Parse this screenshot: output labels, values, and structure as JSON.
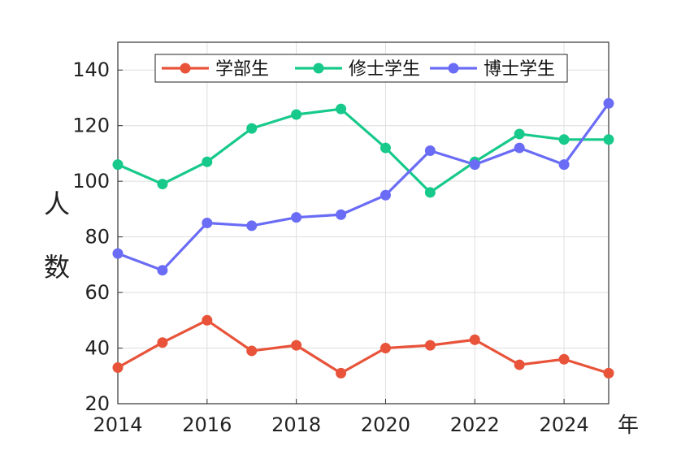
{
  "chart_data": {
    "type": "line",
    "x": [
      2014,
      2015,
      2016,
      2017,
      2018,
      2019,
      2020,
      2021,
      2022,
      2023,
      2024,
      2025
    ],
    "series": [
      {
        "name": "学部生",
        "color": "#E8533A",
        "values": [
          33,
          42,
          50,
          39,
          41,
          31,
          40,
          41,
          43,
          34,
          36,
          31
        ]
      },
      {
        "name": "修士学生",
        "color": "#17C98A",
        "values": [
          106,
          99,
          107,
          119,
          124,
          126,
          112,
          96,
          107,
          117,
          115,
          115
        ]
      },
      {
        "name": "博士学生",
        "color": "#6A6CF5",
        "values": [
          74,
          68,
          85,
          84,
          87,
          88,
          95,
          111,
          106,
          112,
          106,
          128
        ]
      }
    ],
    "xticks": [
      "2014",
      "2016",
      "2018",
      "2020",
      "2022",
      "2024"
    ],
    "yticks": [
      "20",
      "40",
      "60",
      "80",
      "100",
      "120",
      "140"
    ],
    "ylabel_chars": [
      "人",
      "数"
    ],
    "xunit": "年",
    "xlim": [
      2014,
      2025
    ],
    "ylim": [
      20,
      150
    ],
    "grid": true,
    "legend_position": "top"
  }
}
